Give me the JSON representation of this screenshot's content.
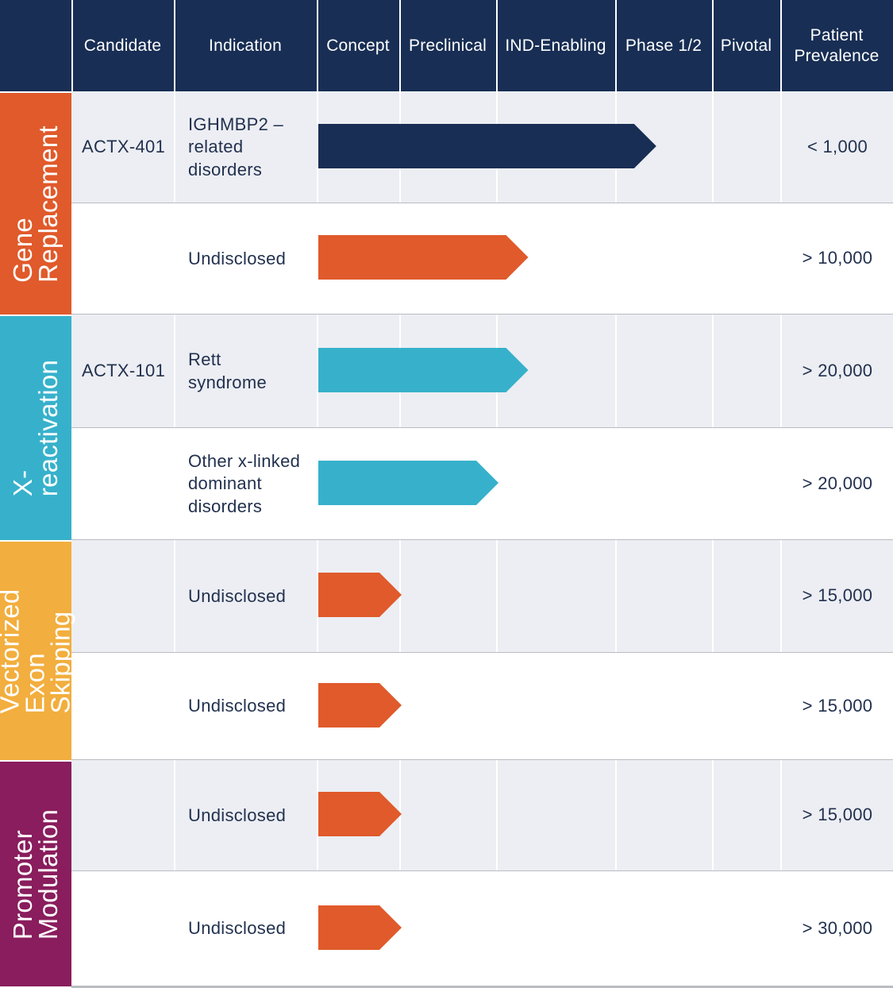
{
  "header": {
    "columns": [
      {
        "id": "category",
        "label": ""
      },
      {
        "id": "candidate",
        "label": "Candidate"
      },
      {
        "id": "indication",
        "label": "Indication"
      },
      {
        "id": "concept",
        "label": "Concept"
      },
      {
        "id": "preclinical",
        "label": "Preclinical"
      },
      {
        "id": "ind-enabling",
        "label": "IND-Enabling"
      },
      {
        "id": "phase12",
        "label": "Phase 1/2"
      },
      {
        "id": "pivotal",
        "label": "Pivotal"
      },
      {
        "id": "prevalence",
        "label": "Patient\nPrevalence"
      }
    ]
  },
  "categories": [
    {
      "id": "gene-replacement",
      "label": "Gene\nReplacement",
      "color": "#e05a2b",
      "rows": [
        0,
        1
      ]
    },
    {
      "id": "x-reactivation",
      "label": "X-reactivation",
      "color": "#37b1cb",
      "rows": [
        2,
        3
      ]
    },
    {
      "id": "vectorized-exon-skipping",
      "label": "Vectorized\nExon Skipping",
      "color": "#f2ae3e",
      "rows": [
        4,
        5
      ]
    },
    {
      "id": "promoter-modulation",
      "label": "Promoter\nModulation",
      "color": "#891d5d",
      "rows": [
        6,
        7
      ]
    }
  ],
  "rows": [
    {
      "candidate": "ACTX-401",
      "indication": "IGHMBP2 –\nrelated\ndisorders",
      "prevalence": "< 1,000",
      "progress_phases": 3.4,
      "bar_color": "#182e54",
      "shaded": true
    },
    {
      "candidate": "",
      "indication": "Undisclosed",
      "prevalence": "> 10,000",
      "progress_phases": 2.25,
      "bar_color": "#e05a2b",
      "shaded": false
    },
    {
      "candidate": "ACTX-101",
      "indication": "Rett\nsyndrome",
      "prevalence": "> 20,000",
      "progress_phases": 2.25,
      "bar_color": "#37b1cb",
      "shaded": true
    },
    {
      "candidate": "",
      "indication": "Other x-linked\ndominant\ndisorders",
      "prevalence": "> 20,000",
      "progress_phases": 2.0,
      "bar_color": "#37b1cb",
      "shaded": false
    },
    {
      "candidate": "",
      "indication": "Undisclosed",
      "prevalence": "> 15,000",
      "progress_phases": 1.0,
      "bar_color": "#e05a2b",
      "shaded": true
    },
    {
      "candidate": "",
      "indication": "Undisclosed",
      "prevalence": "> 15,000",
      "progress_phases": 1.0,
      "bar_color": "#e05a2b",
      "shaded": false
    },
    {
      "candidate": "",
      "indication": "Undisclosed",
      "prevalence": "> 15,000",
      "progress_phases": 1.0,
      "bar_color": "#e05a2b",
      "shaded": true
    },
    {
      "candidate": "",
      "indication": "Undisclosed",
      "prevalence": "> 30,000",
      "progress_phases": 1.0,
      "bar_color": "#e05a2b",
      "shaded": false
    }
  ],
  "colors": {
    "header_bg": "#182e54",
    "row_shaded": "#eceef3",
    "row_plain": "#ffffff",
    "text": "#22314f",
    "row_separator": "#b9bcc0"
  }
}
